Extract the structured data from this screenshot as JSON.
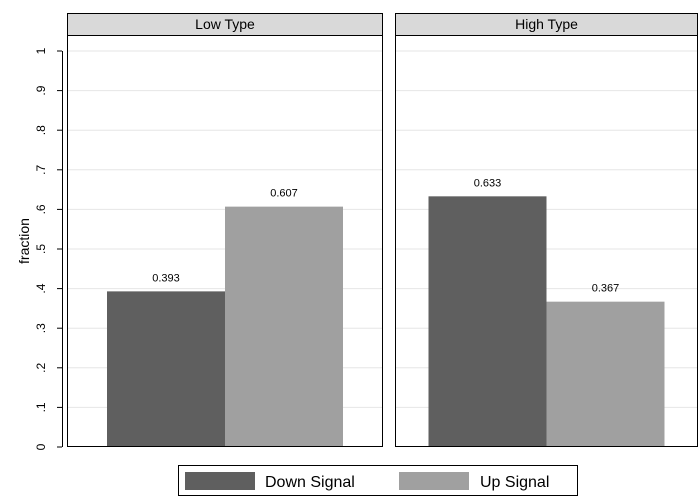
{
  "chart_data": {
    "type": "bar",
    "ylabel": "fraction",
    "ylim": [
      0,
      1
    ],
    "yticks": [
      {
        "value": 0,
        "label": "0"
      },
      {
        "value": 0.1,
        "label": ".1"
      },
      {
        "value": 0.2,
        "label": ".2"
      },
      {
        "value": 0.3,
        "label": ".3"
      },
      {
        "value": 0.4,
        "label": ".4"
      },
      {
        "value": 0.5,
        "label": ".5"
      },
      {
        "value": 0.6,
        "label": ".6"
      },
      {
        "value": 0.7,
        "label": ".7"
      },
      {
        "value": 0.8,
        "label": ".8"
      },
      {
        "value": 0.9,
        "label": ".9"
      },
      {
        "value": 1,
        "label": "1"
      }
    ],
    "grid": true,
    "legend_position": "bottom",
    "series": [
      {
        "name": "Down Signal",
        "color": "#5f5f5f"
      },
      {
        "name": "Up Signal",
        "color": "#a0a0a0"
      }
    ],
    "panels": [
      {
        "title": "Low Type",
        "values": [
          0.393,
          0.607
        ],
        "labels": [
          "0.393",
          "0.607"
        ]
      },
      {
        "title": "High Type",
        "values": [
          0.633,
          0.367
        ],
        "labels": [
          "0.633",
          "0.367"
        ]
      }
    ]
  }
}
